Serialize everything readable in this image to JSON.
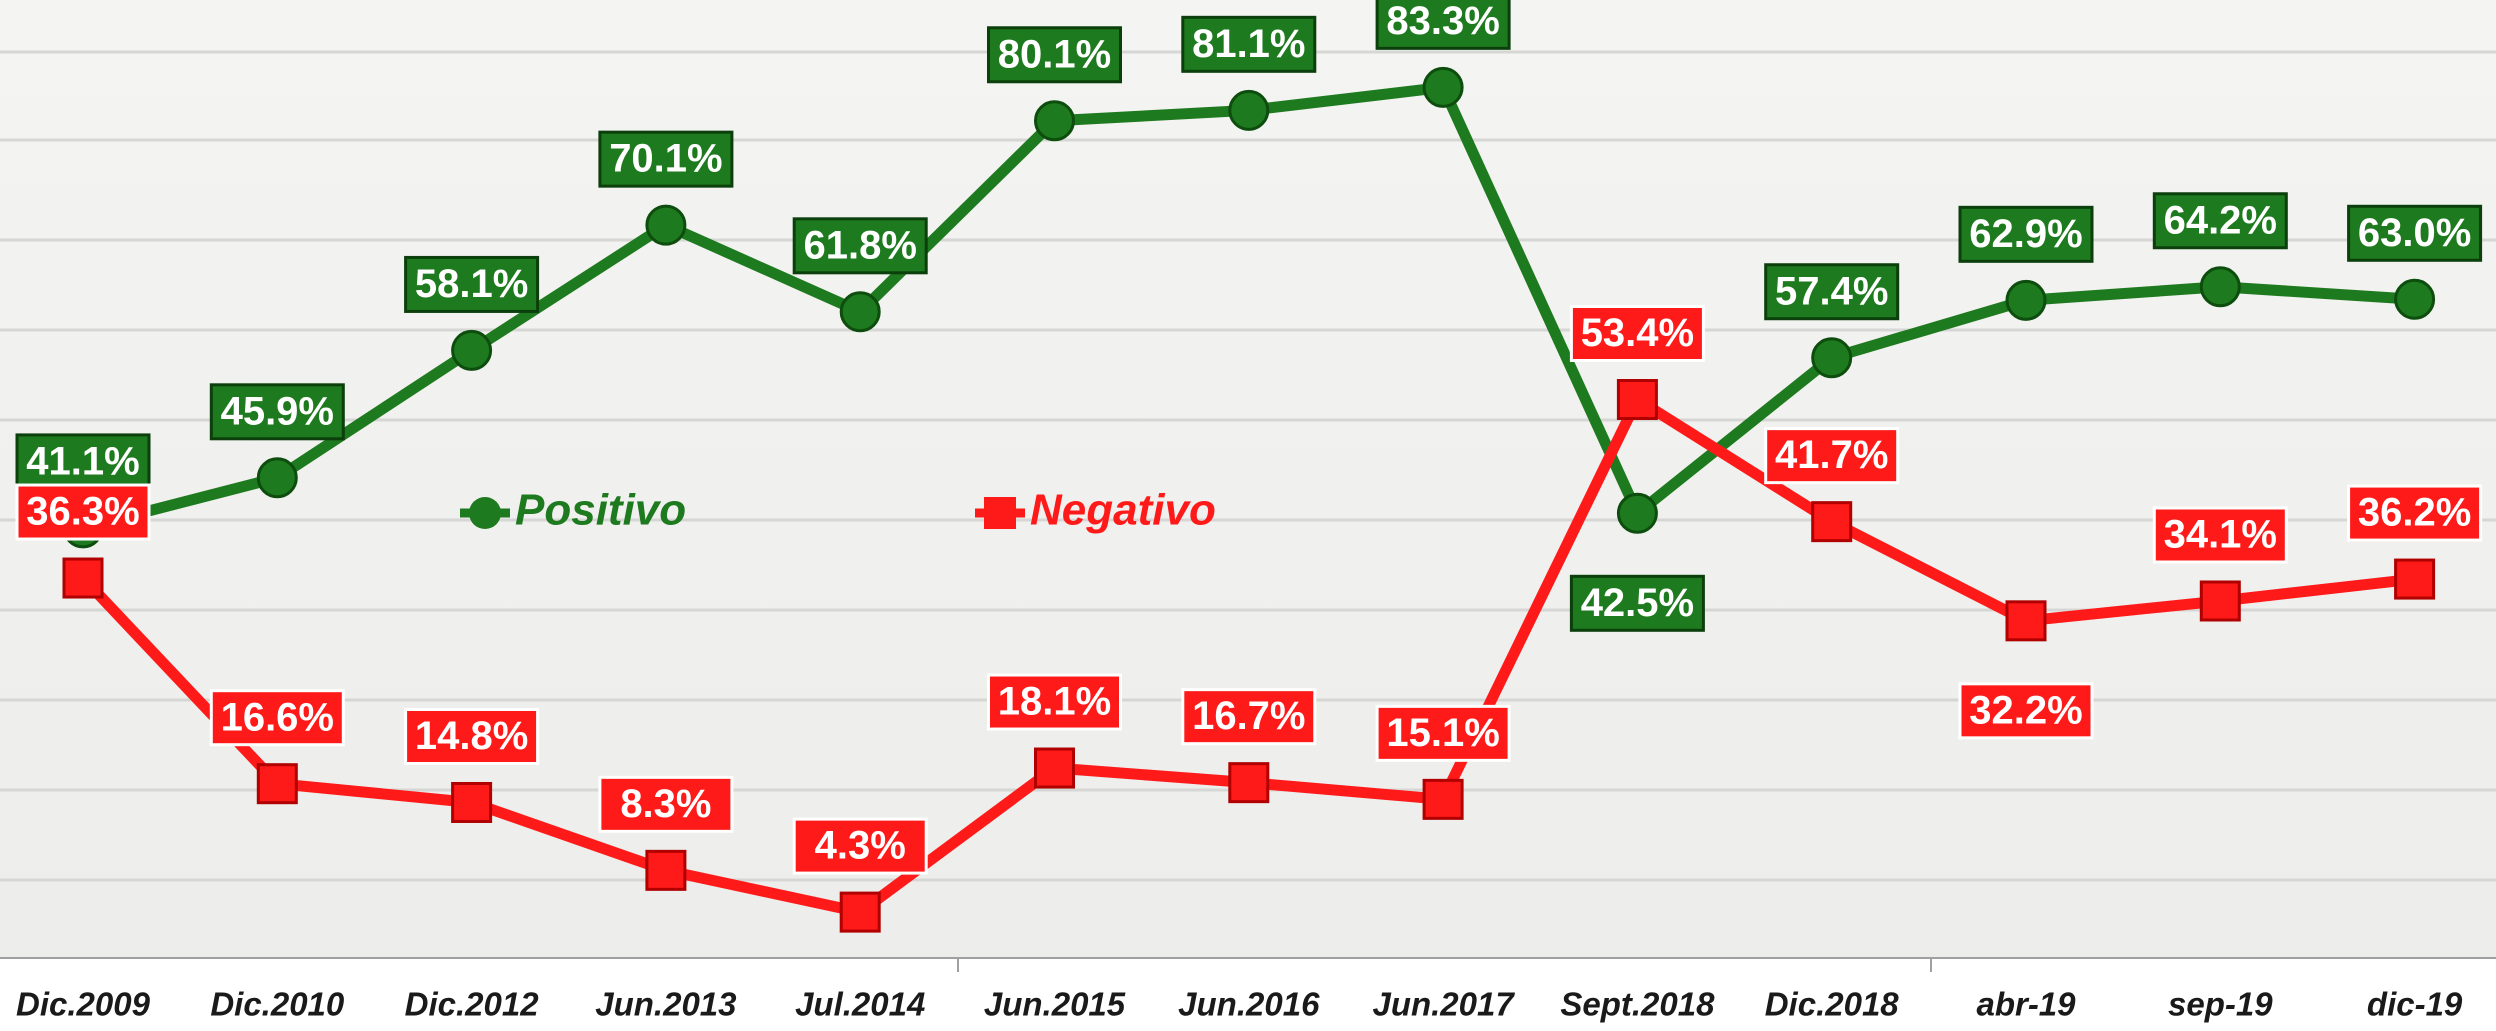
{
  "chart_data": {
    "type": "line",
    "categories": [
      "Dic.2009",
      "Dic.2010",
      "Dic.2012",
      "Jun.2013",
      "Jul.2014",
      "Jun.2015",
      "Jun.2016",
      "Jun.2017",
      "Sept.2018",
      "Dic.2018",
      "abr-19",
      "sep-19",
      "dic-19"
    ],
    "series": [
      {
        "name": "Positivo",
        "color": "#1e7a1e",
        "values": [
          41.1,
          45.9,
          58.1,
          70.1,
          61.8,
          80.1,
          81.1,
          83.3,
          42.5,
          57.4,
          62.9,
          64.2,
          63.0
        ],
        "value_labels": [
          "41.1%",
          "45.9%",
          "58.1%",
          "70.1%",
          "61.8%",
          "80.1%",
          "81.1%",
          "83.3%",
          "42.5%",
          "57.4%",
          "62.9%",
          "64.2%",
          "63.0%"
        ]
      },
      {
        "name": "Negativo",
        "color": "#ff1a1a",
        "values": [
          36.3,
          16.6,
          14.8,
          8.3,
          4.3,
          18.1,
          16.7,
          15.1,
          53.4,
          41.7,
          32.2,
          34.1,
          36.2
        ],
        "value_labels": [
          "36.3%",
          "16.6%",
          "14.8%",
          "8.3%",
          "4.3%",
          "18.1%",
          "16.7%",
          "15.1%",
          "53.4%",
          "41.7%",
          "32.2%",
          "34.1%",
          "36.2%"
        ]
      }
    ],
    "legend": "inside"
  }
}
